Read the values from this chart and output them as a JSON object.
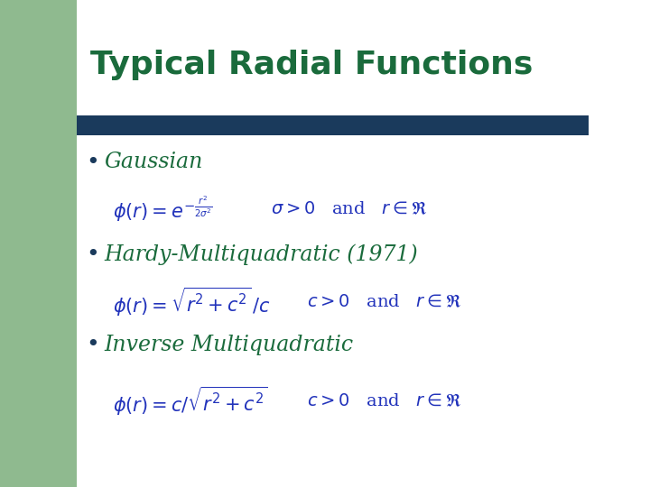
{
  "title": "Typical Radial Functions",
  "title_color": "#1a6b3c",
  "title_fontsize": 26,
  "background_color": "#ffffff",
  "accent_bar_color": "#1a3a5c",
  "left_panel_color": "#8fba8f",
  "bullet_color": "#1a3a5c",
  "bullet1_label": "Gaussian",
  "bullet2_label": "Hardy-Multiquadratic (1971)",
  "bullet3_label": "Inverse Multiquadratic",
  "label_color": "#1a6b3c",
  "formula_color": "#2233bb"
}
